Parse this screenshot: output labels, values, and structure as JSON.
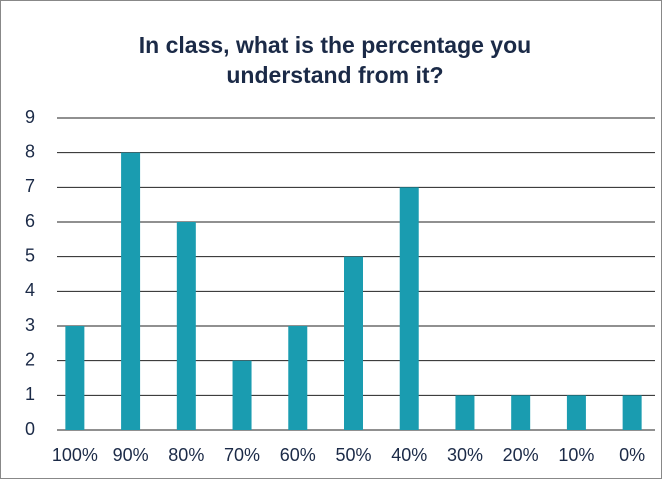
{
  "chart_data": {
    "type": "bar",
    "title": "In class, what is the percentage you understand from it?",
    "categories": [
      "100%",
      "90%",
      "80%",
      "70%",
      "60%",
      "50%",
      "40%",
      "30%",
      "20%",
      "10%",
      "0%"
    ],
    "values": [
      3,
      8,
      6,
      2,
      3,
      5,
      7,
      1,
      1,
      1,
      1
    ],
    "color": "#1a9cb0",
    "ylim": [
      0,
      9
    ],
    "yticks": [
      0,
      1,
      2,
      3,
      4,
      5,
      6,
      7,
      8,
      9
    ],
    "grid": true
  }
}
